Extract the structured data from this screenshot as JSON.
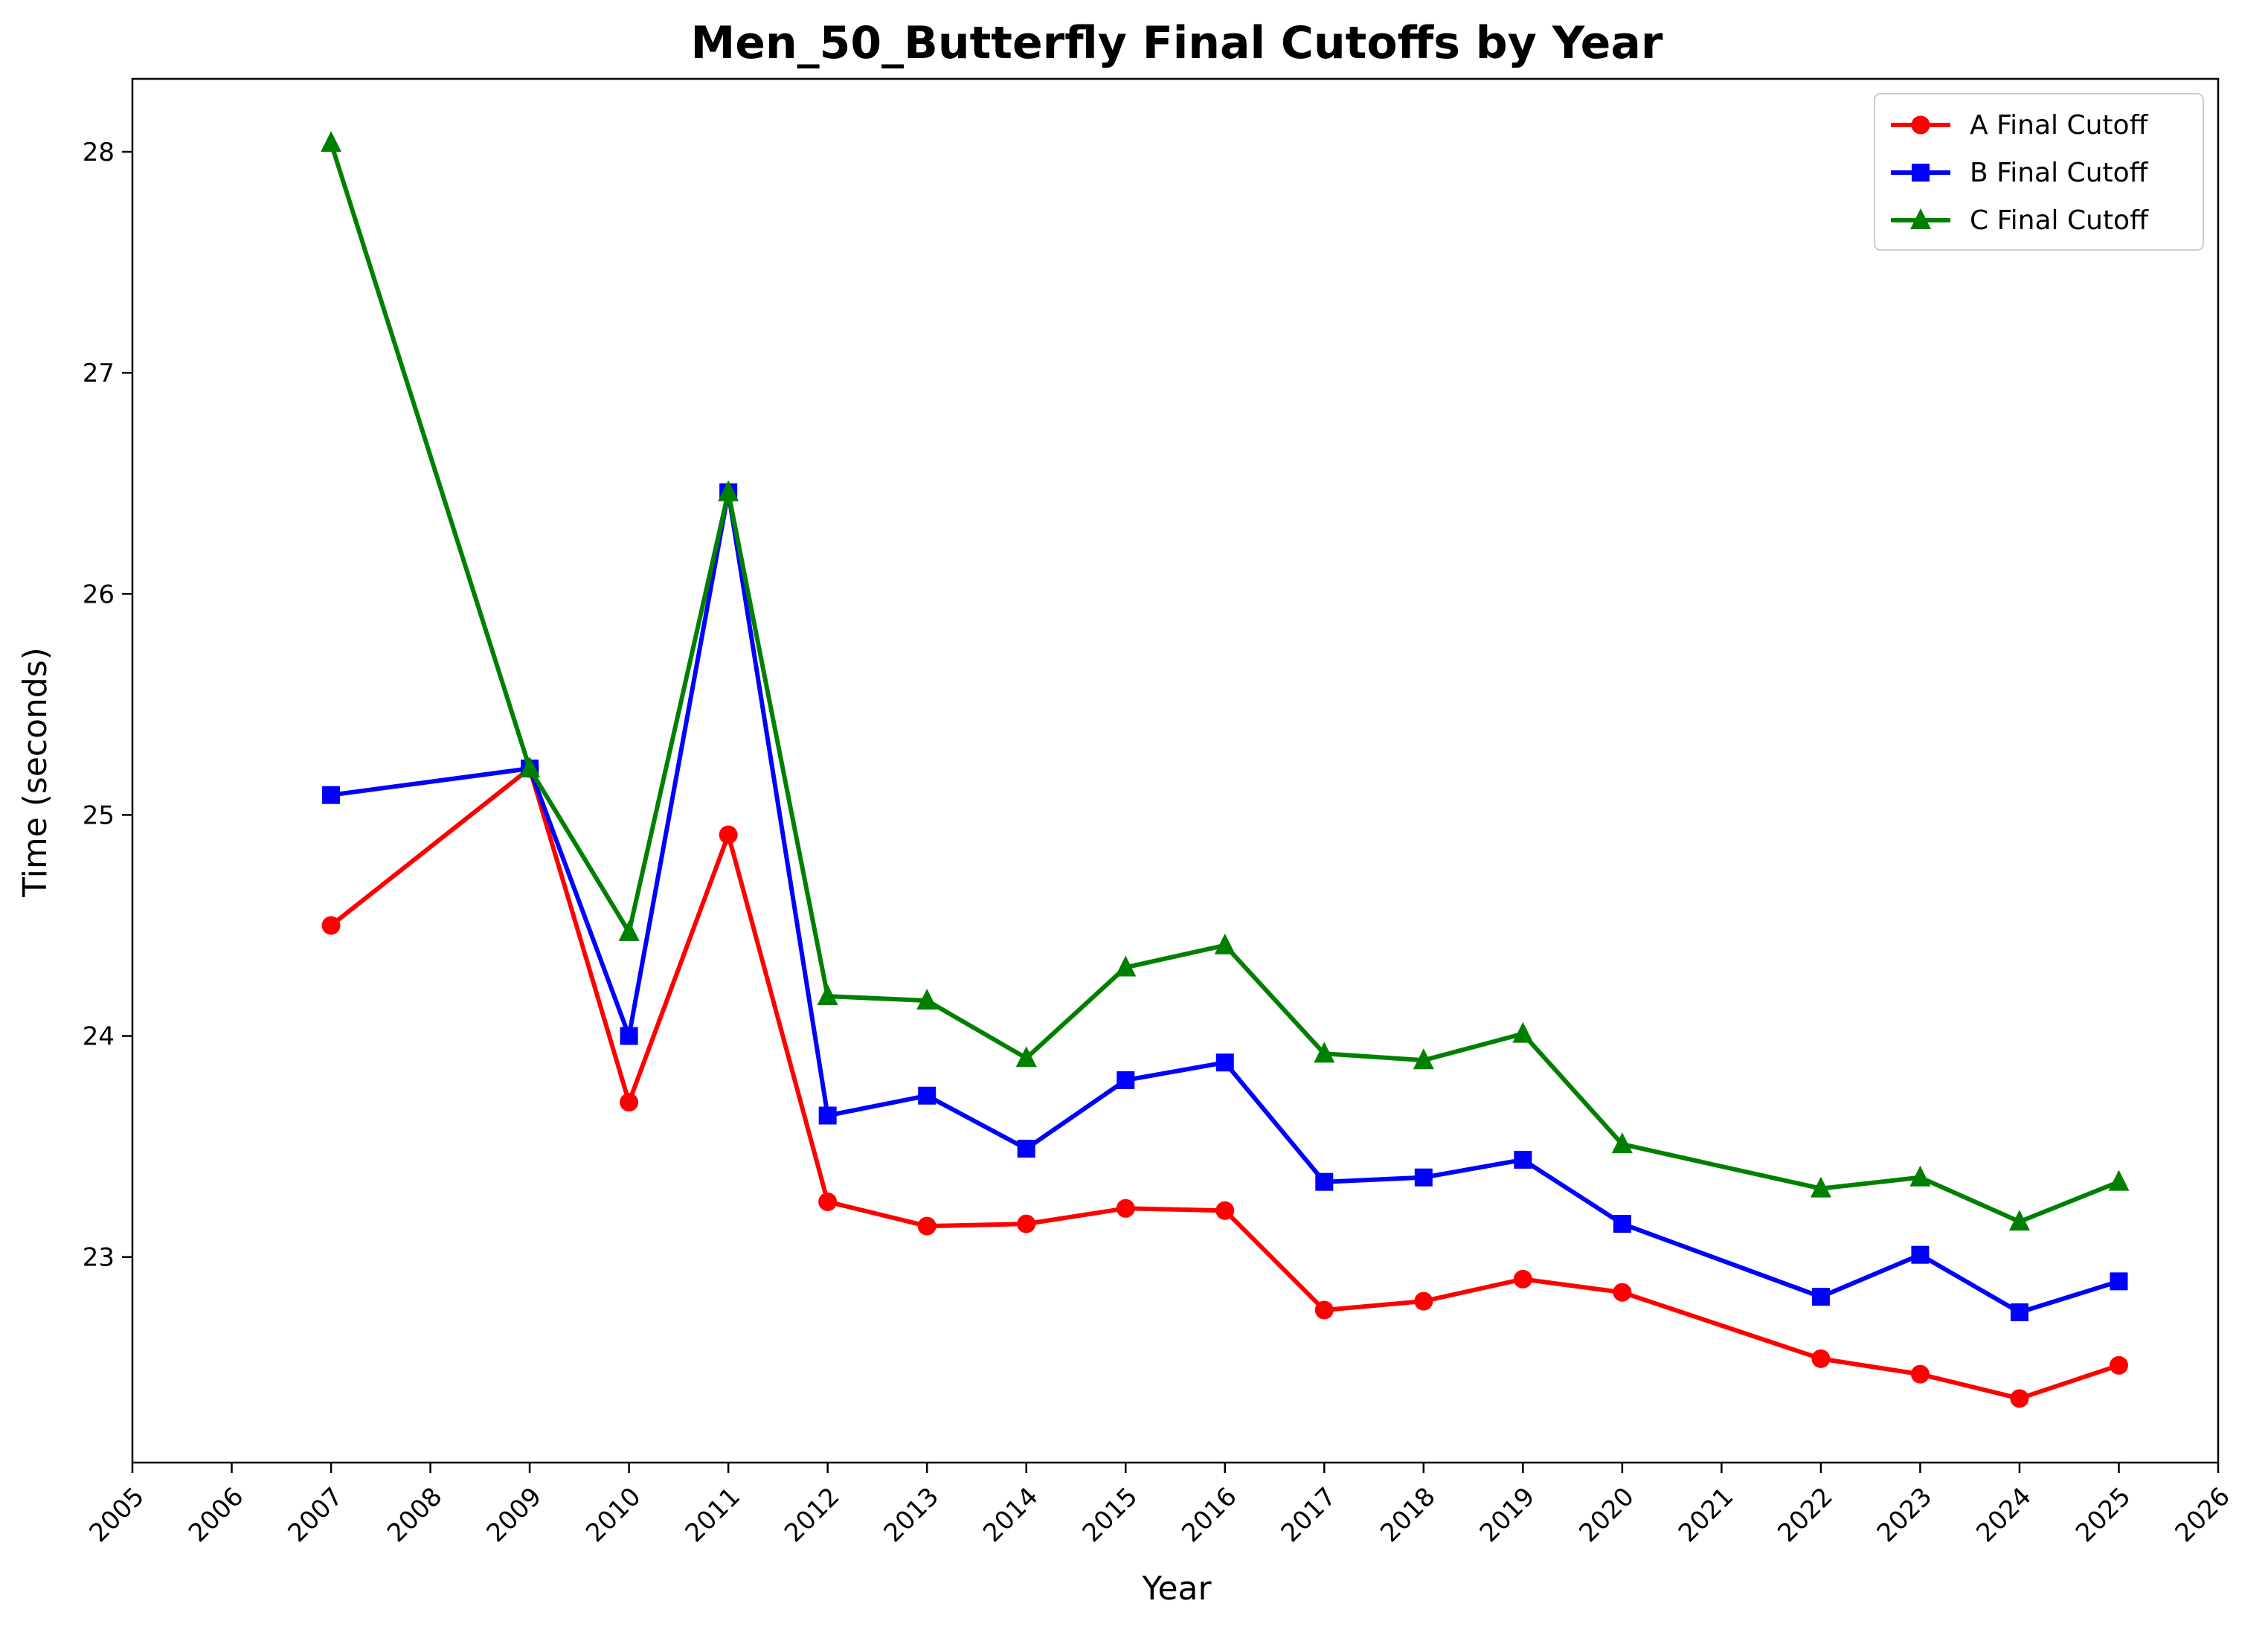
{
  "chart_data": {
    "type": "line",
    "title": "Men_50_Butterfly Final Cutoffs by Year",
    "xlabel": "Year",
    "ylabel": "Time (seconds)",
    "xlim": [
      2005,
      2026
    ],
    "ylim": [
      22.07,
      28.33
    ],
    "x_ticks": [
      "2005",
      "2006",
      "2007",
      "2008",
      "2009",
      "2010",
      "2011",
      "2012",
      "2013",
      "2014",
      "2015",
      "2016",
      "2017",
      "2018",
      "2019",
      "2020",
      "2021",
      "2022",
      "2023",
      "2024",
      "2025",
      "2026"
    ],
    "y_ticks": [
      "23",
      "24",
      "25",
      "26",
      "27",
      "28"
    ],
    "grid": false,
    "legend_position": "top-right",
    "series": [
      {
        "name": "A Final Cutoff",
        "color": "#ff0000",
        "marker": "circle",
        "x": [
          2007,
          2009,
          2010,
          2011,
          2012,
          2013,
          2014,
          2015,
          2016,
          2017,
          2018,
          2019,
          2020,
          2022,
          2023,
          2024,
          2025
        ],
        "y": [
          24.5,
          25.21,
          23.7,
          24.91,
          23.25,
          23.14,
          23.15,
          23.22,
          23.21,
          22.76,
          22.8,
          22.9,
          22.84,
          22.54,
          22.47,
          22.36,
          22.51
        ]
      },
      {
        "name": "B Final Cutoff",
        "color": "#0000ff",
        "marker": "square",
        "x": [
          2007,
          2009,
          2010,
          2011,
          2012,
          2013,
          2014,
          2015,
          2016,
          2017,
          2018,
          2019,
          2020,
          2022,
          2023,
          2024,
          2025
        ],
        "y": [
          25.09,
          25.21,
          24.0,
          26.46,
          23.64,
          23.73,
          23.49,
          23.8,
          23.88,
          23.34,
          23.36,
          23.44,
          23.15,
          22.82,
          23.01,
          22.75,
          22.89
        ]
      },
      {
        "name": "C Final Cutoff",
        "color": "#008000",
        "marker": "triangle",
        "x": [
          2007,
          2009,
          2010,
          2011,
          2012,
          2013,
          2014,
          2015,
          2016,
          2017,
          2018,
          2019,
          2020,
          2022,
          2023,
          2024,
          2025
        ],
        "y": [
          28.04,
          25.21,
          24.47,
          26.46,
          24.18,
          24.16,
          23.9,
          24.31,
          24.41,
          23.92,
          23.89,
          24.01,
          23.51,
          23.31,
          23.36,
          23.16,
          23.34
        ]
      }
    ]
  }
}
